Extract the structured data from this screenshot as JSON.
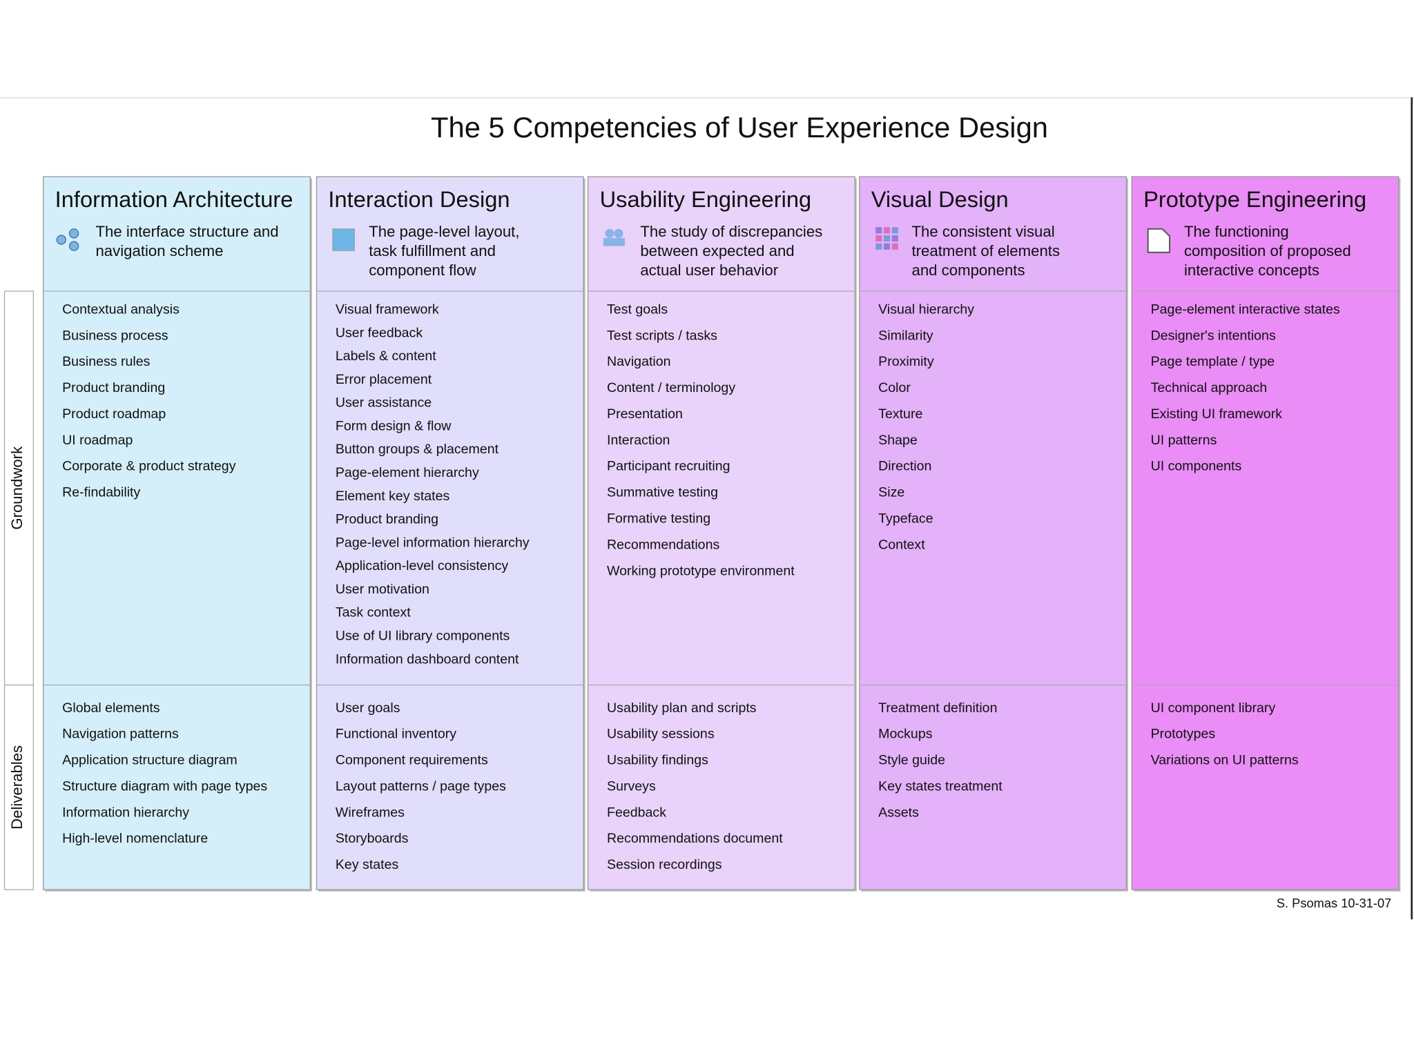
{
  "title": "The 5 Competencies of User Experience Design",
  "row_labels": [
    "Groundwork",
    "Deliverables"
  ],
  "columns": [
    {
      "name": "Information Architecture",
      "description": [
        "The interface structure and",
        "navigation scheme"
      ],
      "groundwork": [
        "Contextual analysis",
        "Business process",
        "Business rules",
        "Product branding",
        "Product roadmap",
        "UI roadmap",
        "Corporate & product strategy",
        "Re-findability"
      ],
      "deliverables": [
        "Global elements",
        "Navigation patterns",
        "Application structure diagram",
        "Structure diagram with page types",
        "Information hierarchy",
        "High-level nomenclature"
      ]
    },
    {
      "name": "Interaction Design",
      "description": [
        "The page-level layout,",
        "task fulfillment and",
        "component flow"
      ],
      "groundwork": [
        "Visual framework",
        "User feedback",
        "Labels & content",
        "Error placement",
        "User assistance",
        "Form design & flow",
        "Button groups & placement",
        "Page-element hierarchy",
        "Element key states",
        "Product branding",
        "Page-level information hierarchy",
        "Application-level consistency",
        "User motivation",
        "Task context",
        "Use of UI library components",
        "Information dashboard content"
      ],
      "deliverables": [
        "User goals",
        "Functional inventory",
        "Component requirements",
        "Layout patterns / page types",
        "Wireframes",
        "Storyboards",
        "Key states"
      ]
    },
    {
      "name": "Usability Engineering",
      "description": [
        "The study of discrepancies",
        "between expected and",
        "actual user behavior"
      ],
      "groundwork": [
        "Test goals",
        "Test scripts / tasks",
        "Navigation",
        "Content / terminology",
        "Presentation",
        "Interaction",
        "Participant recruiting",
        "Summative testing",
        "Formative testing",
        "Recommendations",
        "Working prototype environment"
      ],
      "deliverables": [
        "Usability plan and scripts",
        "Usability sessions",
        "Usability findings",
        "Surveys",
        "Feedback",
        "Recommendations document",
        "Session recordings"
      ]
    },
    {
      "name": "Visual Design",
      "description": [
        "The consistent visual",
        "treatment of elements",
        "and components"
      ],
      "groundwork": [
        "Visual hierarchy",
        "Similarity",
        "Proximity",
        "Color",
        "Texture",
        "Shape",
        "Direction",
        "Size",
        "Typeface",
        "Context"
      ],
      "deliverables": [
        "Treatment definition",
        "Mockups",
        "Style guide",
        "Key states treatment",
        "Assets"
      ]
    },
    {
      "name": "Prototype Engineering",
      "description": [
        "The functioning",
        "composition of proposed",
        "interactive concepts"
      ],
      "groundwork": [
        "Page-element interactive states",
        "Designer's intentions",
        "Page template / type",
        "Technical approach",
        "Existing UI framework",
        "UI patterns",
        "UI components"
      ],
      "deliverables": [
        "UI component library",
        "Prototypes",
        "Variations on UI patterns"
      ]
    }
  ],
  "credit": "S. Psomas 10-31-07"
}
